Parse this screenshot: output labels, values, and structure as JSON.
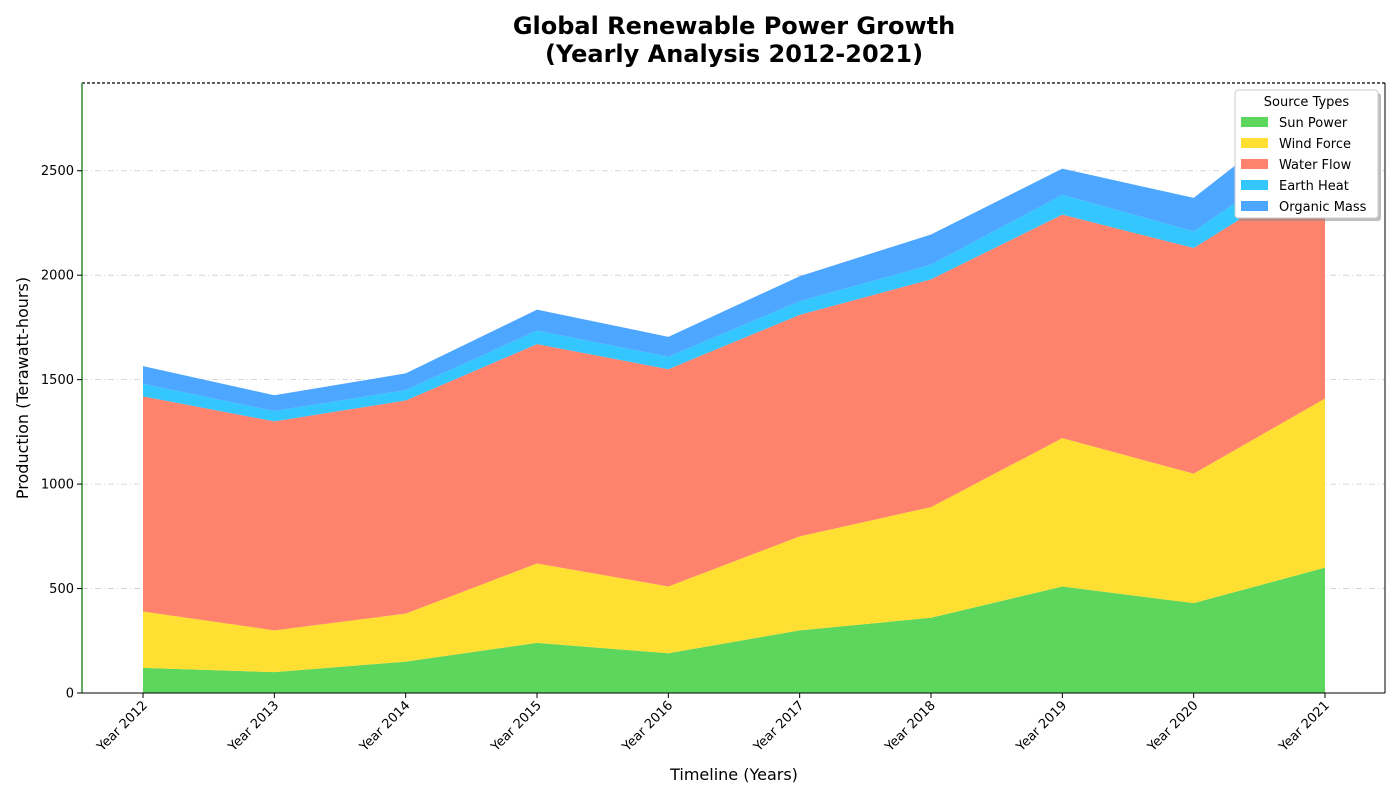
{
  "chart_data": {
    "type": "area",
    "stacked": true,
    "title_line1": "Global Renewable Power Growth",
    "title_line2": "(Yearly Analysis 2012-2021)",
    "xlabel": "Timeline (Years)",
    "ylabel": "Production (Terawatt-hours)",
    "categories": [
      "Year 2012",
      "Year 2013",
      "Year 2014",
      "Year 2015",
      "Year 2016",
      "Year 2017",
      "Year 2018",
      "Year 2019",
      "Year 2020",
      "Year 2021"
    ],
    "ylim": [
      0,
      2920
    ],
    "yticks": [
      "0",
      "500",
      "1000",
      "1500",
      "2000",
      "2500"
    ],
    "grid": "horizontal dash-dot",
    "legend_title": "Source Types",
    "legend_position": "top-right",
    "series": [
      {
        "name": "Sun Power",
        "color": "#5CD65C",
        "values": [
          120,
          100,
          150,
          240,
          190,
          300,
          360,
          510,
          430,
          600
        ]
      },
      {
        "name": "Wind Force",
        "color": "#FFDF32",
        "values": [
          270,
          200,
          230,
          380,
          320,
          450,
          530,
          710,
          620,
          810
        ]
      },
      {
        "name": "Water Flow",
        "color": "#FF826C",
        "values": [
          1030,
          1000,
          1020,
          1050,
          1040,
          1060,
          1090,
          1070,
          1080,
          1110
        ]
      },
      {
        "name": "Earth Heat",
        "color": "#33C6FF",
        "values": [
          60,
          50,
          50,
          65,
          60,
          65,
          70,
          95,
          80,
          120
        ]
      },
      {
        "name": "Organic Mass",
        "color": "#4DA6FF",
        "values": [
          85,
          75,
          80,
          100,
          95,
          120,
          145,
          125,
          160,
          220
        ]
      }
    ]
  }
}
